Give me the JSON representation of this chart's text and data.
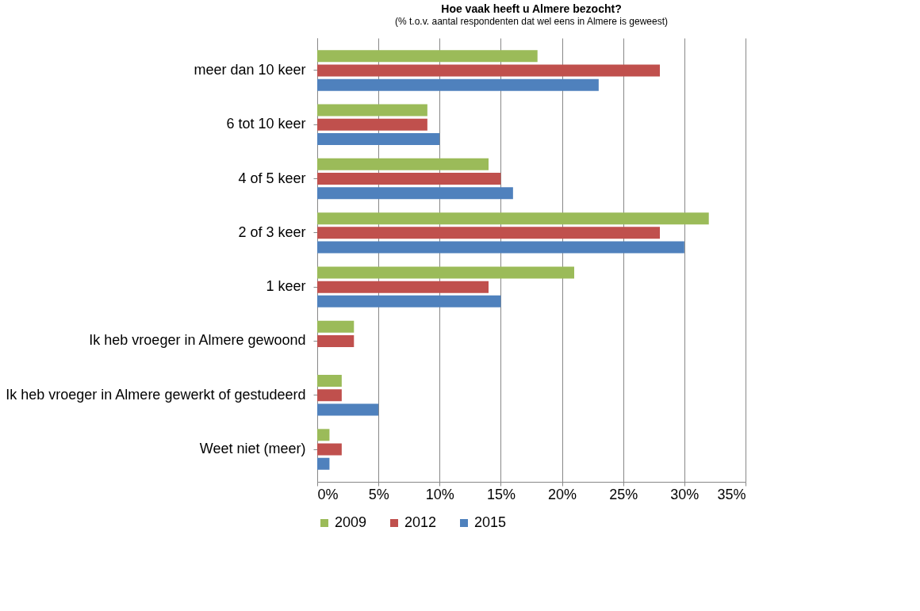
{
  "chart_data": {
    "type": "bar",
    "orientation": "horizontal",
    "title": "Hoe vaak heeft u Almere bezocht?",
    "subtitle": "(% t.o.v. aantal respondenten dat wel eens in Almere is geweest)",
    "categories": [
      "meer dan 10 keer",
      "6 tot 10 keer",
      "4 of 5 keer",
      "2 of 3 keer",
      "1 keer",
      "Ik heb vroeger in Almere gewoond",
      "Ik heb vroeger in Almere gewerkt of gestudeerd",
      "Weet niet (meer)"
    ],
    "series": [
      {
        "name": "2009",
        "color": "#9bbb59",
        "values": [
          18,
          9,
          14,
          32,
          21,
          3,
          2,
          1
        ]
      },
      {
        "name": "2012",
        "color": "#c0504d",
        "values": [
          28,
          9,
          15,
          28,
          14,
          3,
          2,
          2
        ]
      },
      {
        "name": "2015",
        "color": "#4f81bd",
        "values": [
          23,
          10,
          16,
          30,
          15,
          null,
          5,
          1
        ]
      }
    ],
    "xlim": [
      0,
      35
    ],
    "xticks": [
      {
        "value": 0,
        "label": "0%"
      },
      {
        "value": 5,
        "label": "5%"
      },
      {
        "value": 10,
        "label": "10%"
      },
      {
        "value": 15,
        "label": "15%"
      },
      {
        "value": 20,
        "label": "20%"
      },
      {
        "value": 25,
        "label": "25%"
      },
      {
        "value": 30,
        "label": "30%"
      },
      {
        "value": 35,
        "label": "35%"
      }
    ],
    "grid": "x",
    "legend": "bottom"
  }
}
